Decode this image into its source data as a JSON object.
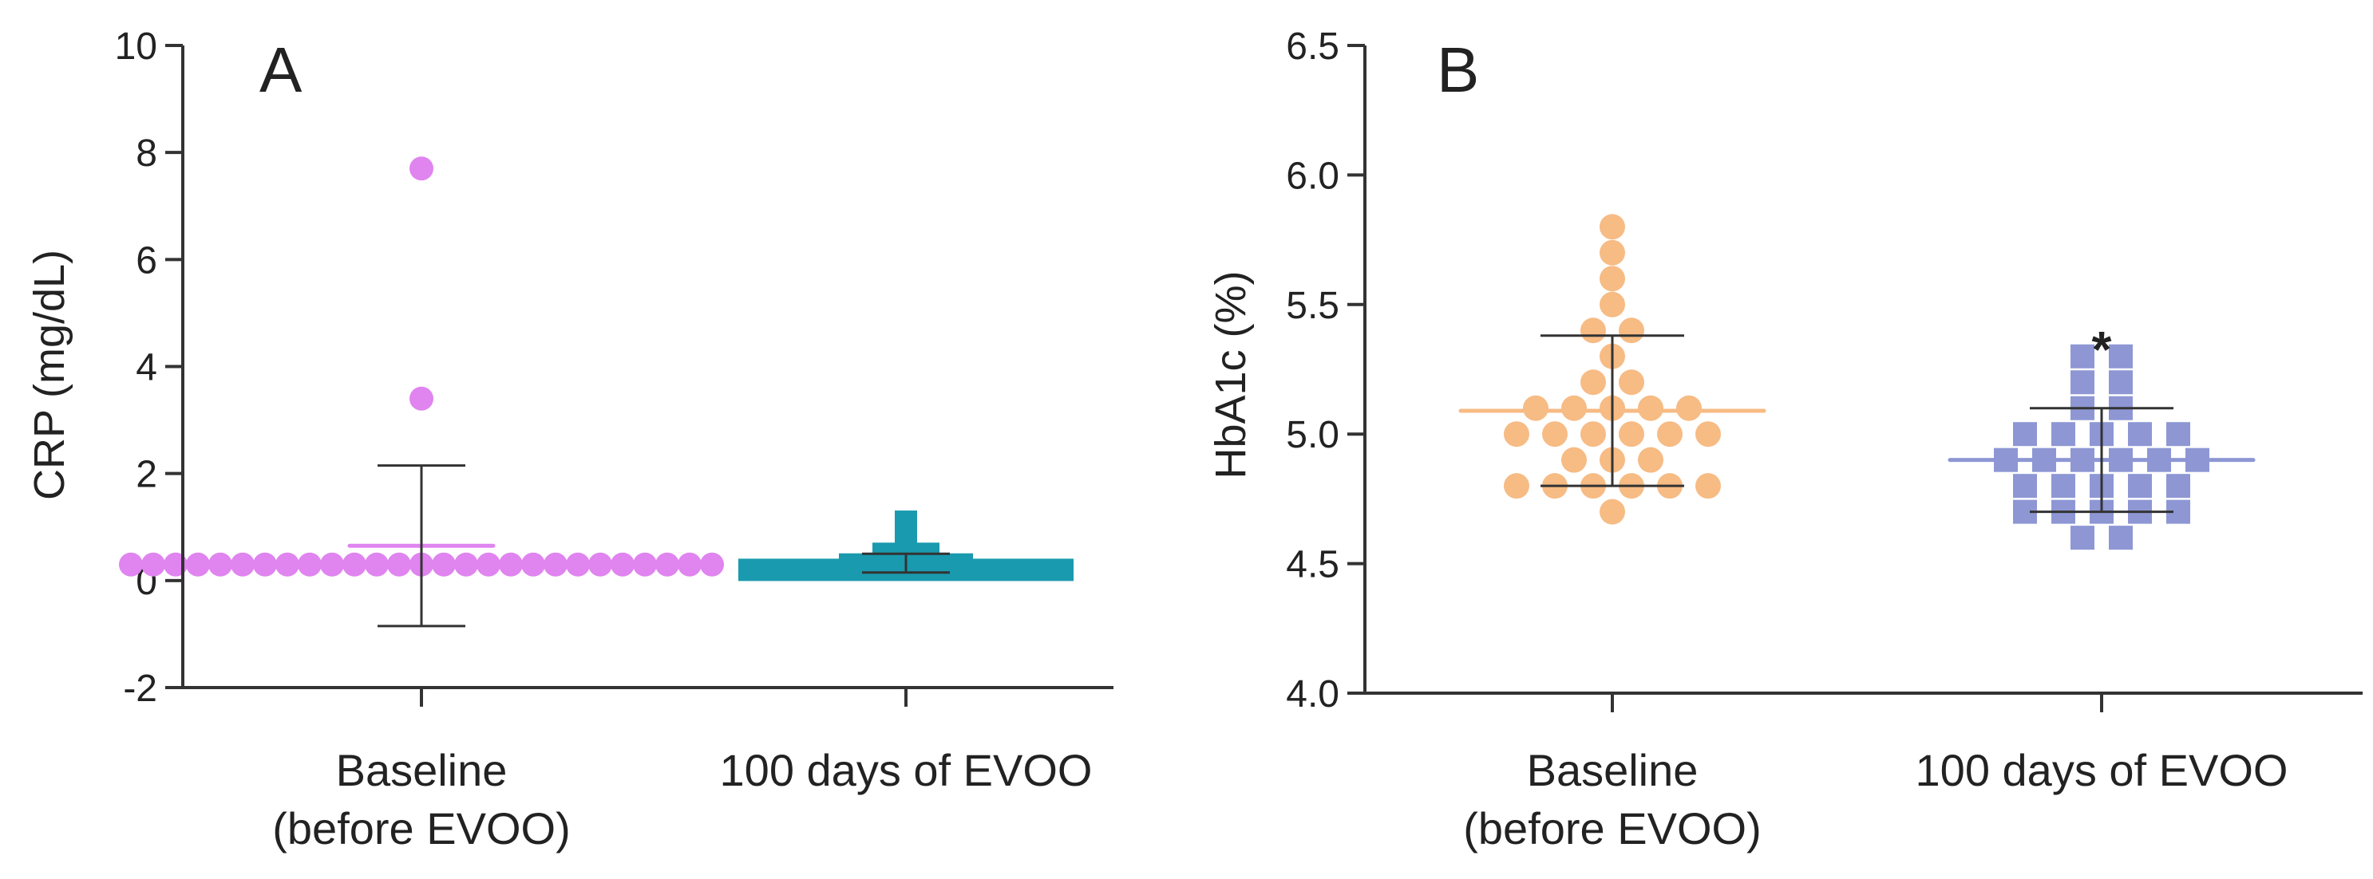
{
  "colors": {
    "crp_baseline": "#e084f0",
    "crp_evoo": "#1a9aae",
    "hba1c_baseline": "#f7bb84",
    "hba1c_evoo": "#8e97d4",
    "axis": "#333333"
  },
  "chart_data": [
    {
      "type": "scatter",
      "panel": "A",
      "title": "",
      "xlabel": "",
      "ylabel": "CRP (mg/dL)",
      "ylim": [
        -2,
        10
      ],
      "yticks": [
        "-2",
        "0",
        "2",
        "4",
        "6",
        "8",
        "10"
      ],
      "categories": [
        {
          "key": "baseline",
          "line1": "Baseline",
          "line2": "(before EVOO)"
        },
        {
          "key": "evoo",
          "line1": "100 days of EVOO",
          "line2": ""
        }
      ],
      "series": [
        {
          "name": "Baseline (before EVOO)",
          "marker": "circle",
          "color": "#e084f0",
          "values": [
            7.7,
            3.4,
            0.3,
            0.3,
            0.3,
            0.3,
            0.3,
            0.3,
            0.3,
            0.3,
            0.3,
            0.3,
            0.3,
            0.3,
            0.3,
            0.3,
            0.3,
            0.3,
            0.3,
            0.3,
            0.3,
            0.3,
            0.3,
            0.3,
            0.3,
            0.3,
            0.3,
            0.3,
            0.3
          ],
          "mean": 0.65,
          "sd_lower": -0.85,
          "sd_upper": 2.15
        },
        {
          "name": "100 days of EVOO",
          "marker": "square",
          "color": "#1a9aae",
          "values": [
            1.1,
            0.7,
            0.5,
            0.5,
            0.5,
            0.4,
            0.4,
            0.4,
            0.3,
            0.3,
            0.3,
            0.3,
            0.3,
            0.3,
            0.2,
            0.2,
            0.2,
            0.2,
            0.2,
            0.2,
            0.2,
            0.2,
            0.2,
            0.2,
            0.2,
            0.2,
            0.2,
            0.2,
            0.2
          ],
          "mean": 0.35,
          "sd_lower": 0.15,
          "sd_upper": 0.5
        }
      ]
    },
    {
      "type": "scatter",
      "panel": "B",
      "title": "",
      "xlabel": "",
      "ylabel": "HbA1c  (%)",
      "ylim": [
        4.0,
        6.5
      ],
      "yticks": [
        "4.0",
        "4.5",
        "5.0",
        "5.5",
        "6.0",
        "6.5"
      ],
      "categories": [
        {
          "key": "baseline",
          "line1": "Baseline",
          "line2": "(before EVOO)"
        },
        {
          "key": "evoo",
          "line1": "100 days of EVOO",
          "line2": ""
        }
      ],
      "annotation": "*",
      "series": [
        {
          "name": "Baseline (before EVOO)",
          "marker": "circle",
          "color": "#f7bb84",
          "values": [
            5.8,
            5.7,
            5.6,
            5.5,
            5.4,
            5.4,
            5.3,
            5.2,
            5.2,
            5.1,
            5.1,
            5.1,
            5.1,
            5.1,
            5.0,
            5.0,
            5.0,
            5.0,
            5.0,
            5.0,
            4.9,
            4.9,
            4.9,
            4.8,
            4.8,
            4.8,
            4.8,
            4.8,
            4.8,
            4.7
          ],
          "mean": 5.09,
          "sd_lower": 4.8,
          "sd_upper": 5.38
        },
        {
          "name": "100 days of EVOO",
          "marker": "square",
          "color": "#8e97d4",
          "values": [
            5.3,
            5.3,
            5.2,
            5.2,
            5.1,
            5.1,
            5.0,
            5.0,
            5.0,
            5.0,
            5.0,
            4.9,
            4.9,
            4.9,
            4.9,
            4.9,
            4.9,
            4.8,
            4.8,
            4.8,
            4.8,
            4.8,
            4.7,
            4.7,
            4.7,
            4.7,
            4.7,
            4.6,
            4.6
          ],
          "mean": 4.9,
          "sd_lower": 4.7,
          "sd_upper": 5.1
        }
      ]
    }
  ]
}
